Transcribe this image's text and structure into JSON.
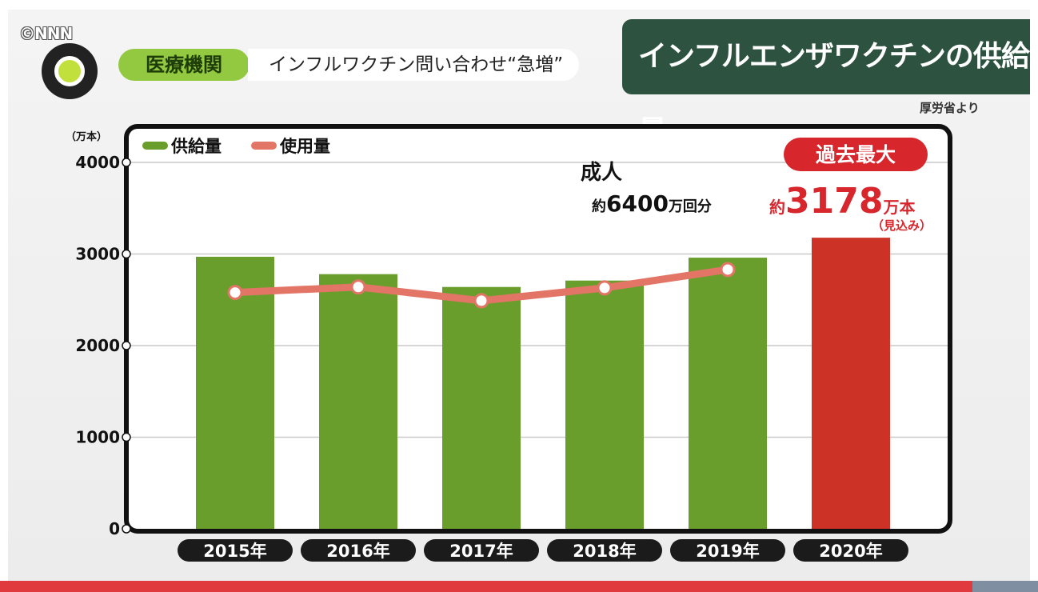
{
  "header": {
    "copyright": "©NNN",
    "category": "医療機関",
    "headline": "インフルワクチン問い合わせ“急増”",
    "title": "インフルエンザワクチンの供給量",
    "source": "厚労省より"
  },
  "annotations": {
    "adult_label": "成人",
    "adult_prefix": "約",
    "adult_value": "6400",
    "adult_suffix": "万回分",
    "record_badge": "過去最大",
    "record_prefix": "約",
    "record_value": "3178",
    "record_unit": "万本",
    "record_note": "（見込み）"
  },
  "colors": {
    "supply": "#6a9e2c",
    "supply_2020": "#cc3226",
    "usage": "#e37566",
    "plot_border": "#111111",
    "record_badge_bg": "#d8262d"
  },
  "chart_data": {
    "type": "bar",
    "unit_label": "（万本）",
    "categories": [
      "2015年",
      "2016年",
      "2017年",
      "2018年",
      "2019年",
      "2020年"
    ],
    "ylim": [
      0,
      4000
    ],
    "yticks": [
      0,
      1000,
      2000,
      3000,
      4000
    ],
    "grid": true,
    "legend_position": "top-left",
    "series": [
      {
        "name": "供給量",
        "type": "bar",
        "values": [
          2970,
          2780,
          2640,
          2710,
          2960,
          3178
        ]
      },
      {
        "name": "使用量",
        "type": "line",
        "values": [
          2580,
          2640,
          2490,
          2630,
          2830,
          null
        ]
      }
    ]
  }
}
